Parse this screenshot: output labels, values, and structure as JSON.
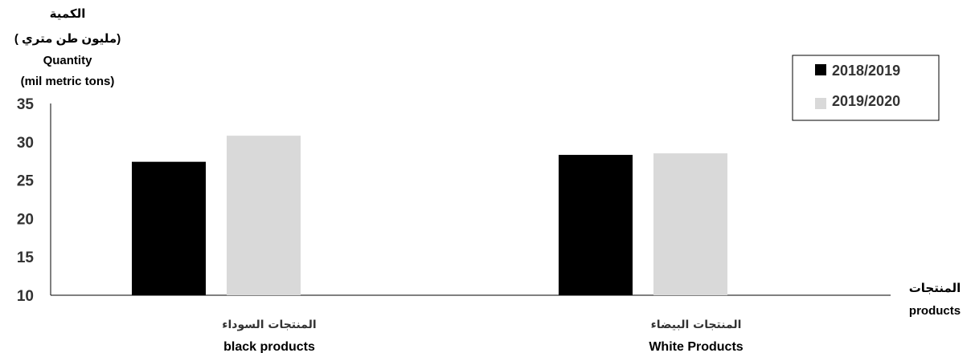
{
  "chart_data": {
    "type": "bar",
    "ylabel_lines": [
      "الكمية",
      "( مليون طن متري)",
      "Quantity",
      "(mil metric tons)"
    ],
    "xlabel_lines": [
      "المنتجات",
      "products"
    ],
    "categories": [
      {
        "ar": "المنتجات السوداء",
        "en": "black products"
      },
      {
        "ar": "المنتجات البيضاء",
        "en": "White Products"
      }
    ],
    "series": [
      {
        "name": "2018/2019",
        "color": "#000000",
        "values": [
          27.4,
          28.3
        ]
      },
      {
        "name": "2019/2020",
        "color": "#d9d9d9",
        "values": [
          30.8,
          28.5
        ]
      }
    ],
    "ylim": [
      10,
      35
    ],
    "yticks": [
      10,
      15,
      20,
      25,
      30,
      35
    ],
    "legend_position": "top-right",
    "grid": false
  }
}
